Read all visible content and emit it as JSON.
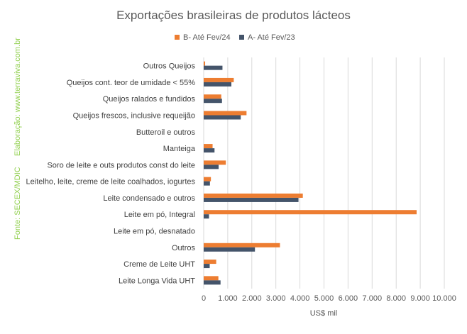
{
  "chart_data": {
    "type": "bar",
    "orientation": "horizontal",
    "title": "Exportações brasileiras de produtos lácteos",
    "xlabel": "US$ mil",
    "ylabel": "",
    "xlim": [
      0,
      10000
    ],
    "xticks": [
      0,
      1000,
      2000,
      3000,
      4000,
      5000,
      6000,
      7000,
      8000,
      9000,
      10000
    ],
    "xtick_labels": [
      "0",
      "1.000",
      "2.000",
      "3.000",
      "4.000",
      "5.000",
      "6.000",
      "7.000",
      "8.000",
      "9.000",
      "10.000"
    ],
    "grid": true,
    "legend_position": "top",
    "categories": [
      "Outros Queijos",
      "Queijos cont. teor de umidade < 55%",
      "Queijos ralados e fundidos",
      "Queijos frescos, inclusive requeijão",
      "Butteroil e outros",
      "Manteiga",
      "Soro de leite e outs produtos const do leite",
      "Leitelho, leite, creme de leite coalhados, iogurtes",
      "Leite condensado e outros",
      "Leite em pó, Integral",
      "Leite em pó, desnatado",
      "Outros",
      "Creme de Leite UHT",
      "Leite Longa Vida UHT"
    ],
    "series": [
      {
        "name": "B- Até Fev/24",
        "color": "#ed7d31",
        "values": [
          60,
          1250,
          730,
          1780,
          0,
          370,
          920,
          300,
          4120,
          8850,
          0,
          3170,
          520,
          610
        ]
      },
      {
        "name": "A- Até Fev/23",
        "color": "#44546a",
        "values": [
          780,
          1150,
          760,
          1540,
          0,
          450,
          620,
          260,
          3940,
          220,
          0,
          2130,
          250,
          700
        ]
      }
    ],
    "side_text": "Fonte: SECEX/MDIC     Elaboração: www.terraviva.com.br",
    "side_text_color": "#92d050"
  }
}
